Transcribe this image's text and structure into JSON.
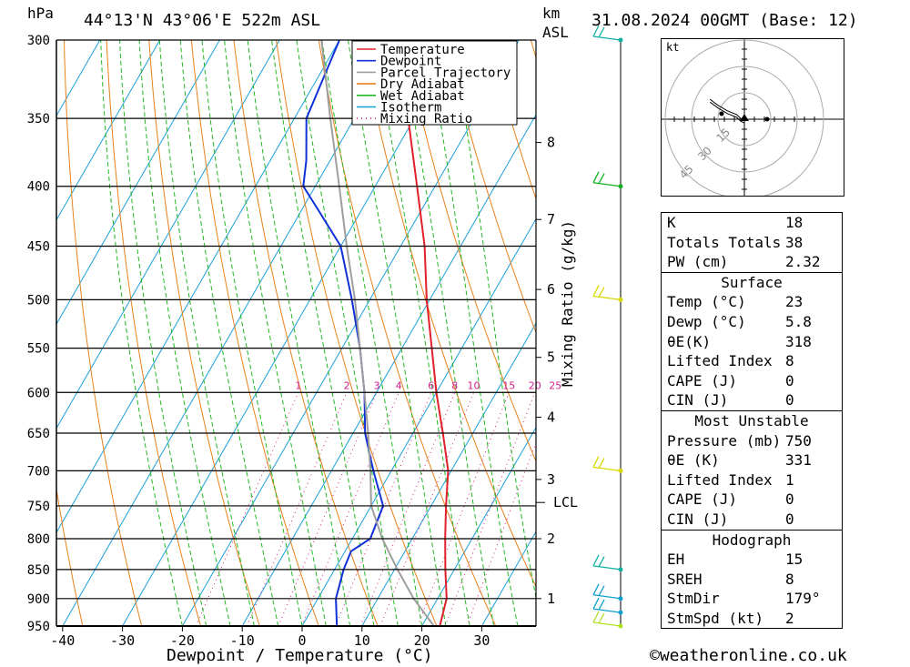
{
  "header": {
    "pressure_unit": "hPa",
    "location": "44°13'N  43°06'E  522m  ASL",
    "height_unit_km": "km",
    "height_unit_asl": "ASL",
    "datetime": "31.08.2024  00GMT  (Base: 12)"
  },
  "chart_data": {
    "type": "line",
    "xlabel": "Dewpoint / Temperature (°C)",
    "ylabel": "hPa",
    "right_label": "Mixing Ratio (g/kg)",
    "x_ticks": [
      -40,
      -30,
      -20,
      -10,
      0,
      10,
      20,
      30
    ],
    "pressure_levels": [
      300,
      350,
      400,
      450,
      500,
      550,
      600,
      650,
      700,
      750,
      800,
      850,
      900,
      950
    ],
    "height_ticks_km": [
      {
        "label": "8",
        "p": 367
      },
      {
        "label": "7",
        "p": 427
      },
      {
        "label": "6",
        "p": 490
      },
      {
        "label": "5",
        "p": 560
      },
      {
        "label": "4",
        "p": 630
      },
      {
        "label": "3",
        "p": 712
      },
      {
        "label": "2",
        "p": 800
      },
      {
        "label": "1",
        "p": 900
      }
    ],
    "lcl": {
      "label": "LCL",
      "p": 745
    },
    "mixing_ratio_labels": [
      "1",
      "2",
      "3",
      "4",
      "6",
      "8",
      "10",
      "15",
      "20",
      "25"
    ],
    "legend": [
      "Temperature",
      "Dewpoint",
      "Parcel Trajectory",
      "Dry Adiabat",
      "Wet Adiabat",
      "Isotherm",
      "Mixing Ratio"
    ],
    "series": [
      {
        "name": "Temperature",
        "color": "#e0202a",
        "points": [
          [
            950,
            23
          ],
          [
            900,
            21.5
          ],
          [
            850,
            18.5
          ],
          [
            800,
            15.5
          ],
          [
            750,
            12.5
          ],
          [
            700,
            9.5
          ],
          [
            650,
            5
          ],
          [
            600,
            0
          ],
          [
            550,
            -5
          ],
          [
            500,
            -10.5
          ],
          [
            450,
            -16
          ],
          [
            400,
            -23
          ],
          [
            350,
            -31
          ],
          [
            300,
            -40
          ]
        ]
      },
      {
        "name": "Dewpoint",
        "color": "#1030d8",
        "points": [
          [
            950,
            5.8
          ],
          [
            900,
            3
          ],
          [
            850,
            1.5
          ],
          [
            820,
            1
          ],
          [
            800,
            3
          ],
          [
            750,
            2
          ],
          [
            700,
            -3
          ],
          [
            650,
            -8
          ],
          [
            600,
            -12
          ],
          [
            550,
            -17
          ],
          [
            500,
            -23
          ],
          [
            450,
            -30
          ],
          [
            420,
            -37
          ],
          [
            400,
            -42
          ],
          [
            380,
            -44
          ],
          [
            350,
            -48
          ],
          [
            300,
            -50
          ]
        ]
      },
      {
        "name": "Parcel Trajectory",
        "color": "#9e9e9e",
        "points": [
          [
            950,
            22
          ],
          [
            900,
            16
          ],
          [
            850,
            10.5
          ],
          [
            800,
            5
          ],
          [
            750,
            0
          ],
          [
            700,
            -3.5
          ],
          [
            650,
            -7.5
          ],
          [
            600,
            -12
          ],
          [
            550,
            -17
          ],
          [
            500,
            -22.5
          ],
          [
            450,
            -29
          ],
          [
            400,
            -36
          ],
          [
            350,
            -44
          ],
          [
            300,
            -53
          ]
        ]
      }
    ]
  },
  "hodograph": {
    "unit": "kt",
    "rings": [
      "15",
      "30",
      "45"
    ],
    "trace": [
      [
        0,
        -2
      ],
      [
        -2,
        -1
      ],
      [
        -4,
        1
      ],
      [
        -9,
        3
      ],
      [
        -14,
        6
      ],
      [
        -18,
        9
      ]
    ]
  },
  "wind_barbs": [
    {
      "p": 300,
      "color": "#10b0a0"
    },
    {
      "p": 400,
      "color": "#10b020"
    },
    {
      "p": 500,
      "color": "#d8d800"
    },
    {
      "p": 700,
      "color": "#d8d800"
    },
    {
      "p": 850,
      "color": "#10b0a0"
    },
    {
      "p": 900,
      "color": "#10a0d0"
    },
    {
      "p": 925,
      "color": "#10a0d0"
    },
    {
      "p": 950,
      "color": "#b0e020"
    }
  ],
  "indices": {
    "general": [
      {
        "label": "K",
        "value": "18"
      },
      {
        "label": "Totals Totals",
        "value": "38"
      },
      {
        "label": "PW (cm)",
        "value": "2.32"
      }
    ],
    "surface_title": "Surface",
    "surface": [
      {
        "label": "Temp (°C)",
        "value": "23"
      },
      {
        "label": "Dewp (°C)",
        "value": "5.8"
      },
      {
        "label": "θE(K)",
        "value": "318"
      },
      {
        "label": "Lifted Index",
        "value": "8"
      },
      {
        "label": "CAPE (J)",
        "value": "0"
      },
      {
        "label": "CIN (J)",
        "value": "0"
      }
    ],
    "unstable_title": "Most Unstable",
    "unstable": [
      {
        "label": "Pressure (mb)",
        "value": "750"
      },
      {
        "label": "θE (K)",
        "value": "331"
      },
      {
        "label": "Lifted Index",
        "value": "1"
      },
      {
        "label": "CAPE (J)",
        "value": "0"
      },
      {
        "label": "CIN (J)",
        "value": "0"
      }
    ],
    "hodo_title": "Hodograph",
    "hodo": [
      {
        "label": "EH",
        "value": "15"
      },
      {
        "label": "SREH",
        "value": "8"
      },
      {
        "label": "StmDir",
        "value": "179°"
      },
      {
        "label": "StmSpd (kt)",
        "value": "2"
      }
    ]
  },
  "footer": {
    "copyright": "©weatheronline.co.uk"
  }
}
